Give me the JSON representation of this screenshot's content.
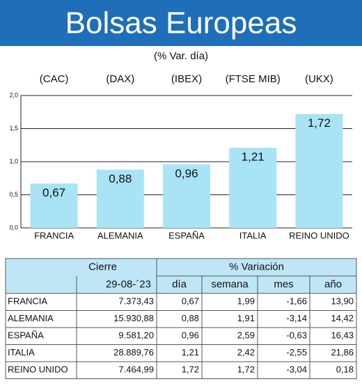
{
  "title": "Bolsas Europeas",
  "chart_data": {
    "type": "bar",
    "subtitle": "(% Var. día)",
    "indices": [
      "(CAC)",
      "(DAX)",
      "(IBEX)",
      "(FTSE MIB)",
      "(UKX)"
    ],
    "categories": [
      "FRANCIA",
      "ALEMANIA",
      "ESPAÑA",
      "ITALIA",
      "REINO UNIDO"
    ],
    "values": [
      0.67,
      0.88,
      0.96,
      1.21,
      1.72
    ],
    "value_labels": [
      "0,67",
      "0,88",
      "0,96",
      "1,21",
      "1,72"
    ],
    "color": "#a9e3f6",
    "ylim": [
      0,
      2
    ],
    "yticks": [
      {
        "value": 0,
        "label": "0,0"
      },
      {
        "value": 0.5,
        "label": "0,5"
      },
      {
        "value": 1,
        "label": "1,0"
      },
      {
        "value": 1.5,
        "label": "1,5"
      },
      {
        "value": 2,
        "label": "2,0"
      }
    ],
    "grid": true
  },
  "table": {
    "header": [
      "Cierre",
      "% Variación"
    ],
    "subheader": [
      "29-08-´23",
      "día",
      "semana",
      "mes",
      "año"
    ],
    "rows": [
      [
        "FRANCIA",
        "7.373,43",
        "0,67",
        "1,99",
        "-1,66",
        "13,90"
      ],
      [
        "ALEMANIA",
        "15.930,88",
        "0,88",
        "1,91",
        "-3,14",
        "14,42"
      ],
      [
        "ESPAÑA",
        "9.581,20",
        "0,96",
        "2,59",
        "-0,63",
        "16,43"
      ],
      [
        "ITALIA",
        "28.889,76",
        "1,21",
        "2,42",
        "-2,55",
        "21,86"
      ],
      [
        "REINO UNIDO",
        "7.464,99",
        "1,72",
        "1,72",
        "-3,04",
        "0,18"
      ]
    ]
  }
}
